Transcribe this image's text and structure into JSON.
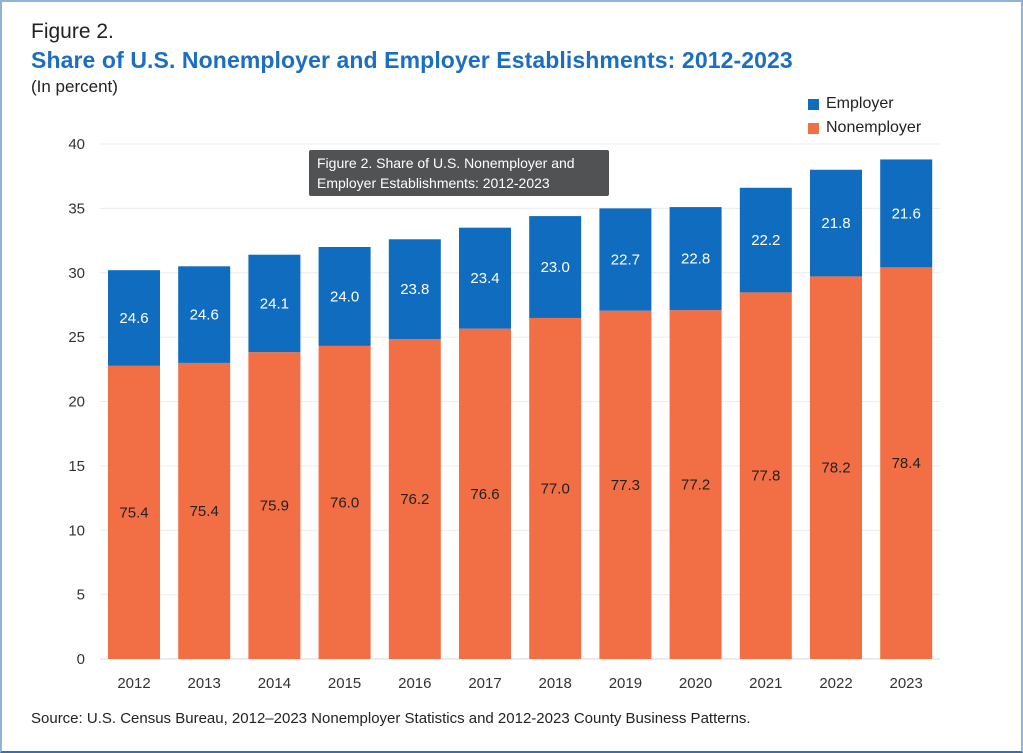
{
  "figure_label": "Figure 2.",
  "tooltip": "Figure 2. Share of U.S. Nonemployer and Employer Establishments: 2012-2023",
  "chart_data": {
    "type": "bar",
    "stacked": true,
    "title": "Share of U.S. Nonemployer and Employer Establishments: 2012-2023",
    "subtitle": "(In percent)",
    "xlabel": "",
    "ylabel": "",
    "ylim": [
      0,
      40
    ],
    "yticks": [
      "0",
      "5",
      "10",
      "15",
      "20",
      "25",
      "30",
      "35",
      "40"
    ],
    "grid": true,
    "legend_position": "top-right",
    "categories": [
      "2012",
      "2013",
      "2014",
      "2015",
      "2016",
      "2017",
      "2018",
      "2019",
      "2020",
      "2021",
      "2022",
      "2023"
    ],
    "totals": [
      30.2,
      30.5,
      31.4,
      32.0,
      32.6,
      33.5,
      34.4,
      35.0,
      35.1,
      36.6,
      38.0,
      38.8
    ],
    "series": [
      {
        "name": "Nonemployer",
        "color": "#f26f45",
        "labels": [
          "75.4",
          "75.4",
          "75.9",
          "76.0",
          "76.2",
          "76.6",
          "77.0",
          "77.3",
          "77.2",
          "77.8",
          "78.2",
          "78.4"
        ]
      },
      {
        "name": "Employer",
        "color": "#0f6cbf",
        "labels": [
          "24.6",
          "24.6",
          "24.1",
          "24.0",
          "23.8",
          "23.4",
          "23.0",
          "22.7",
          "22.8",
          "22.2",
          "21.8",
          "21.6"
        ]
      }
    ],
    "legend": [
      "Employer",
      "Nonemployer"
    ],
    "source": "Source: U.S. Census Bureau, 2012–2023 Nonemployer Statistics and 2012-2023 County Business Patterns."
  }
}
